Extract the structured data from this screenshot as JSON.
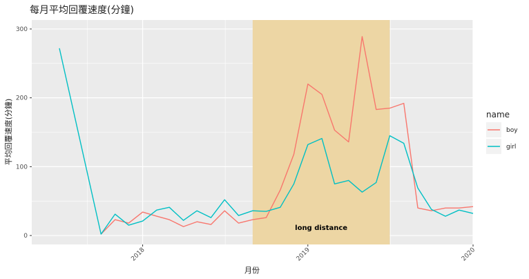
{
  "chart_data": {
    "type": "line",
    "title": "每月平均回覆速度(分鐘)",
    "xlabel": "月份",
    "ylabel": "平均回覆速度(分鐘)",
    "x_axis": {
      "type": "date",
      "range": [
        "2017-05-01",
        "2020-01-01"
      ],
      "ticks": [
        "2018-01-01",
        "2019-01-01",
        "2020-01-01"
      ],
      "tick_labels": [
        "2018",
        "2019",
        "2020"
      ]
    },
    "y_axis": {
      "range": [
        -13,
        313
      ],
      "ticks": [
        0,
        100,
        200,
        300
      ],
      "tick_labels": [
        "0",
        "100",
        "200",
        "300"
      ]
    },
    "grid": true,
    "legend": {
      "title": "name",
      "position": "right"
    },
    "highlight": {
      "start": "2018-09-01",
      "end": "2019-07-01",
      "label": "long distance",
      "color": "#EDD6A4"
    },
    "series": [
      {
        "name": "boy",
        "color": "#F8766D",
        "points": [
          [
            "2017-10-01",
            2
          ],
          [
            "2017-11-01",
            23
          ],
          [
            "2017-12-01",
            18
          ],
          [
            "2018-01-01",
            34
          ],
          [
            "2018-02-01",
            28
          ],
          [
            "2018-03-01",
            23
          ],
          [
            "2018-04-01",
            13
          ],
          [
            "2018-05-01",
            20
          ],
          [
            "2018-06-01",
            16
          ],
          [
            "2018-07-01",
            36
          ],
          [
            "2018-08-01",
            18
          ],
          [
            "2018-09-01",
            23
          ],
          [
            "2018-10-01",
            26
          ],
          [
            "2018-11-01",
            66
          ],
          [
            "2018-12-01",
            118
          ],
          [
            "2019-01-01",
            220
          ],
          [
            "2019-02-01",
            205
          ],
          [
            "2019-03-01",
            153
          ],
          [
            "2019-04-01",
            136
          ],
          [
            "2019-05-01",
            289
          ],
          [
            "2019-06-01",
            183
          ],
          [
            "2019-07-01",
            185
          ],
          [
            "2019-08-01",
            192
          ],
          [
            "2019-09-01",
            40
          ],
          [
            "2019-10-01",
            36
          ],
          [
            "2019-11-01",
            40
          ],
          [
            "2019-12-01",
            40
          ],
          [
            "2020-01-01",
            42
          ]
        ]
      },
      {
        "name": "girl",
        "color": "#00BFC4",
        "points": [
          [
            "2017-07-01",
            272
          ],
          [
            "2017-10-01",
            2
          ],
          [
            "2017-11-01",
            31
          ],
          [
            "2017-12-01",
            15
          ],
          [
            "2018-01-01",
            21
          ],
          [
            "2018-02-01",
            37
          ],
          [
            "2018-03-01",
            41
          ],
          [
            "2018-04-01",
            22
          ],
          [
            "2018-05-01",
            36
          ],
          [
            "2018-06-01",
            26
          ],
          [
            "2018-07-01",
            52
          ],
          [
            "2018-08-01",
            29
          ],
          [
            "2018-09-01",
            36
          ],
          [
            "2018-10-01",
            35
          ],
          [
            "2018-11-01",
            41
          ],
          [
            "2018-12-01",
            75
          ],
          [
            "2019-01-01",
            132
          ],
          [
            "2019-02-01",
            141
          ],
          [
            "2019-03-01",
            75
          ],
          [
            "2019-04-01",
            80
          ],
          [
            "2019-05-01",
            63
          ],
          [
            "2019-06-01",
            77
          ],
          [
            "2019-07-01",
            145
          ],
          [
            "2019-08-01",
            134
          ],
          [
            "2019-09-01",
            69
          ],
          [
            "2019-10-01",
            38
          ],
          [
            "2019-11-01",
            28
          ],
          [
            "2019-12-01",
            37
          ],
          [
            "2020-01-01",
            32
          ]
        ]
      }
    ]
  }
}
